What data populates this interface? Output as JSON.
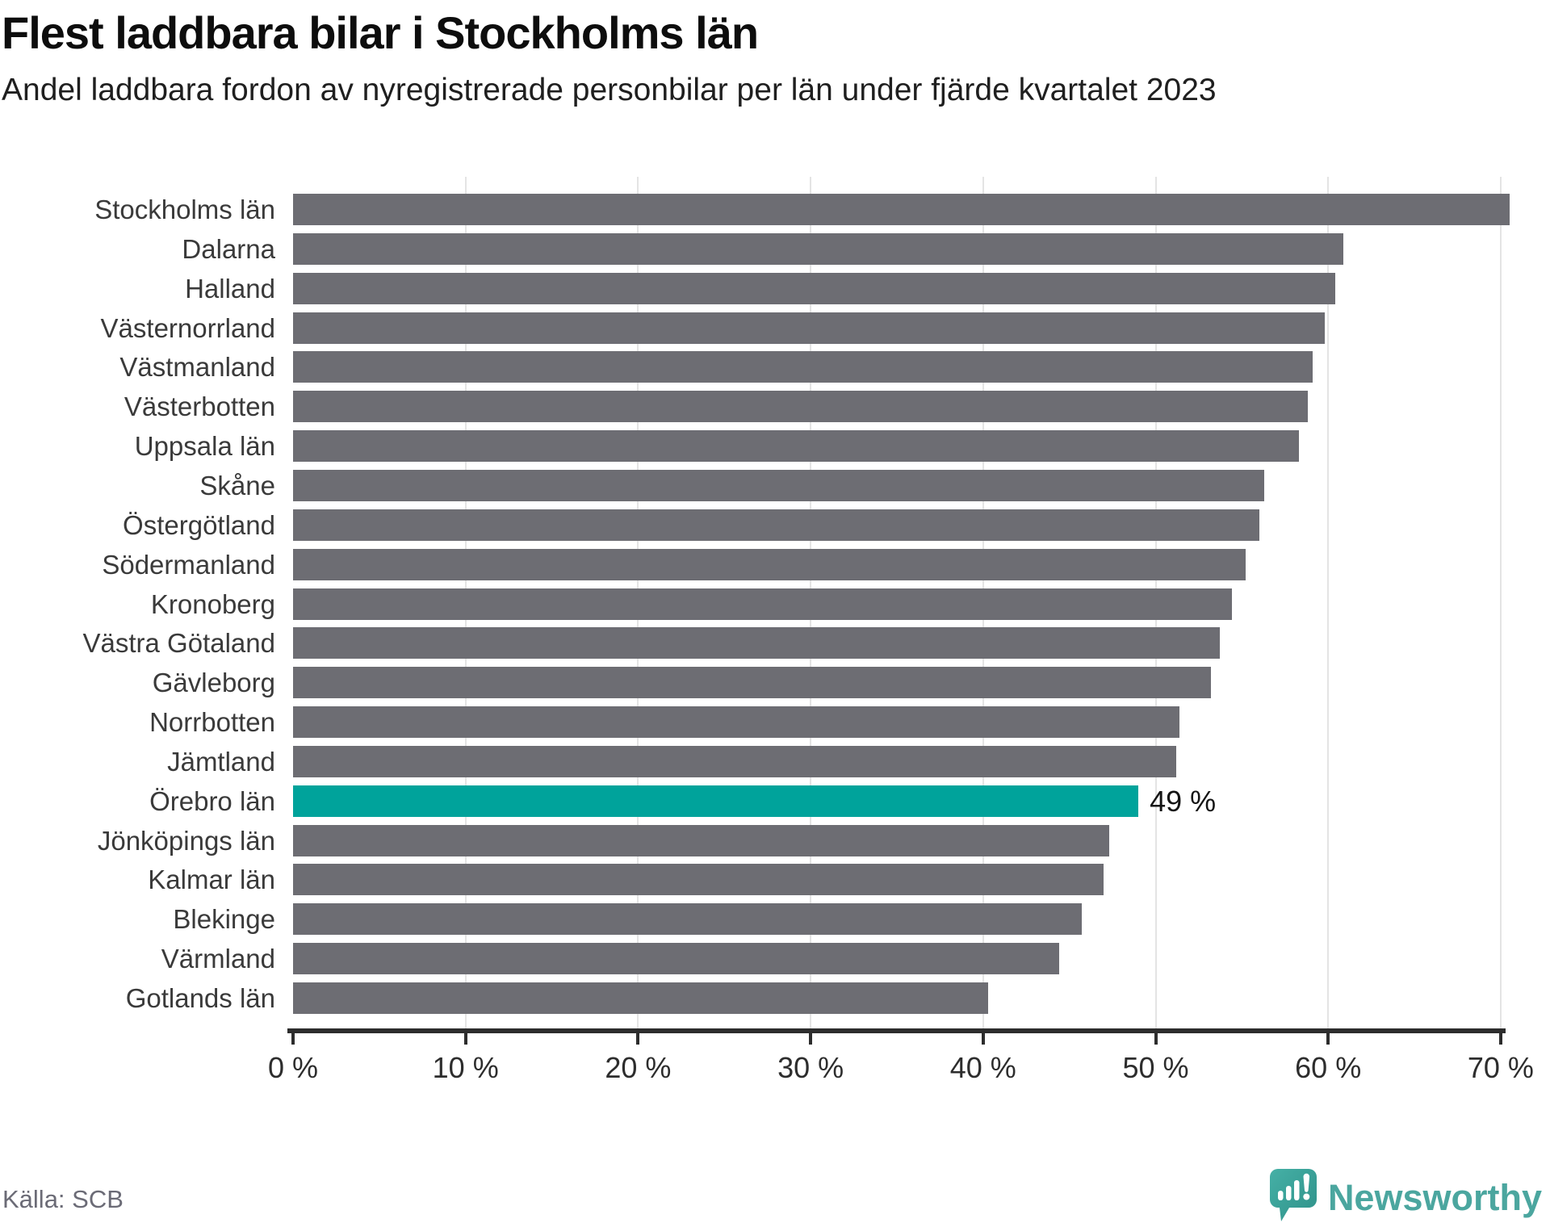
{
  "header": {
    "title": "Flest laddbara bilar i Stockholms län",
    "subtitle": "Andel laddbara fordon av nyregistrerade personbilar per län under fjärde kvartalet 2023"
  },
  "chart_data": {
    "type": "bar",
    "orientation": "horizontal",
    "title": "Flest laddbara bilar i Stockholms län",
    "subtitle": "Andel laddbara fordon av nyregistrerade personbilar per län under fjärde kvartalet 2023",
    "unit": "%",
    "categories": [
      "Stockholms län",
      "Dalarna",
      "Halland",
      "Västernorrland",
      "Västmanland",
      "Västerbotten",
      "Uppsala län",
      "Skåne",
      "Östergötland",
      "Södermanland",
      "Kronoberg",
      "Västra Götaland",
      "Gävleborg",
      "Norrbotten",
      "Jämtland",
      "Örebro län",
      "Jönköpings län",
      "Kalmar län",
      "Blekinge",
      "Värmland",
      "Gotlands län"
    ],
    "values": [
      70.5,
      60.9,
      60.4,
      59.8,
      59.1,
      58.8,
      58.3,
      56.3,
      56.0,
      55.2,
      54.4,
      53.7,
      53.2,
      51.4,
      51.2,
      49.0,
      47.3,
      47.0,
      45.7,
      44.4,
      40.3
    ],
    "highlight": {
      "category": "Örebro län",
      "index": 15,
      "value": 49,
      "data_label": "49 %",
      "color": "#00a39b"
    },
    "bar_color": "#6d6d73",
    "xlabel": "",
    "ylabel": "",
    "xlim": [
      0,
      70
    ],
    "x_tick_values": [
      0,
      10,
      20,
      30,
      40,
      50,
      60,
      70
    ],
    "x_tick_labels": [
      "0 %",
      "10 %",
      "20 %",
      "30 %",
      "40 %",
      "50 %",
      "60 %",
      "70 %"
    ],
    "grid": "vertical-only",
    "legend": "none"
  },
  "footer": {
    "source": "Källa: SCB",
    "brand": "Newsworthy"
  },
  "colors": {
    "bar_gray": "#6d6d73",
    "highlight_teal": "#00a39b",
    "gridline": "#e4e4e4",
    "axis": "#2d2d2d",
    "source_text": "#6b6b76",
    "brand_teal": "#4ba69f",
    "background": "#ffffff"
  }
}
